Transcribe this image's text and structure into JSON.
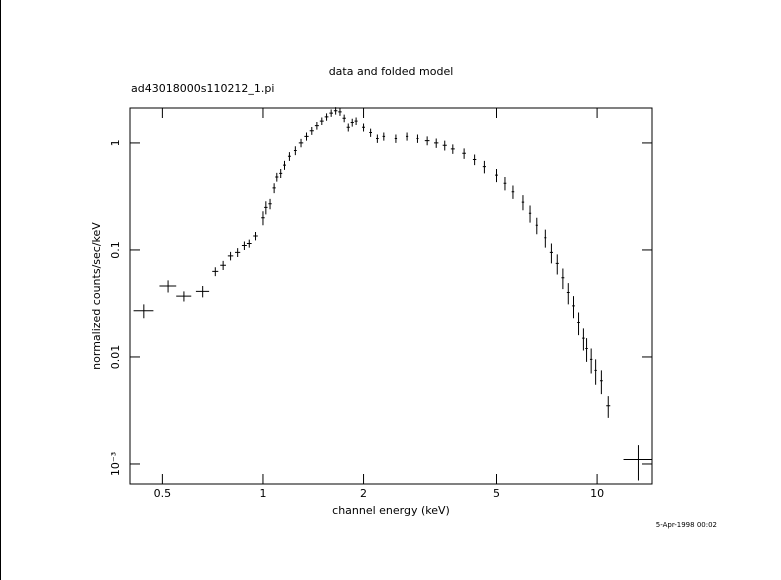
{
  "chart_data": {
    "type": "errorbar-scatter",
    "title": "data and folded model",
    "subtitle": "ad43018000s110212_1.pi",
    "x_label": "channel energy (keV)",
    "y_label": "normalized counts/sec/keV",
    "timestamp": "5-Apr-1998 00:02",
    "log_x": true,
    "log_y": true,
    "xlim": [
      0.4,
      14.6
    ],
    "ylim": [
      0.00065,
      2.12
    ],
    "xticks": [
      0.5,
      1,
      2,
      5,
      10
    ],
    "yticks": [
      {
        "value": 0.001,
        "label": "10⁻³"
      },
      0.01,
      0.1,
      1
    ],
    "color": "#000000",
    "x": [
      0.44,
      0.52,
      0.58,
      0.66,
      0.72,
      0.76,
      0.8,
      0.84,
      0.88,
      0.91,
      0.95,
      1.0,
      1.02,
      1.05,
      1.08,
      1.1,
      1.13,
      1.16,
      1.2,
      1.25,
      1.3,
      1.35,
      1.4,
      1.45,
      1.5,
      1.55,
      1.6,
      1.65,
      1.7,
      1.75,
      1.8,
      1.85,
      1.9,
      2.0,
      2.1,
      2.2,
      2.3,
      2.5,
      2.7,
      2.9,
      3.1,
      3.3,
      3.5,
      3.7,
      4.0,
      4.3,
      4.6,
      5.0,
      5.3,
      5.6,
      6.0,
      6.3,
      6.6,
      7.0,
      7.3,
      7.6,
      7.9,
      8.2,
      8.5,
      8.8,
      9.1,
      9.3,
      9.6,
      9.9,
      10.3,
      10.8,
      13.3
    ],
    "values": [
      0.027,
      0.046,
      0.037,
      0.041,
      0.063,
      0.072,
      0.088,
      0.095,
      0.11,
      0.115,
      0.135,
      0.2,
      0.25,
      0.27,
      0.38,
      0.48,
      0.52,
      0.62,
      0.75,
      0.85,
      1.0,
      1.15,
      1.3,
      1.45,
      1.6,
      1.75,
      1.9,
      2.0,
      1.95,
      1.7,
      1.4,
      1.55,
      1.6,
      1.4,
      1.25,
      1.1,
      1.15,
      1.1,
      1.15,
      1.1,
      1.05,
      1.0,
      0.95,
      0.88,
      0.8,
      0.7,
      0.6,
      0.5,
      0.42,
      0.35,
      0.28,
      0.22,
      0.17,
      0.13,
      0.095,
      0.075,
      0.055,
      0.04,
      0.03,
      0.021,
      0.015,
      0.012,
      0.0095,
      0.0075,
      0.006,
      0.0035,
      0.0011
    ],
    "xerr": [
      0.03,
      0.03,
      0.03,
      0.03,
      0.015,
      0.015,
      0.015,
      0.015,
      0.015,
      0.015,
      0.015,
      0.012,
      0.012,
      0.012,
      0.012,
      0.012,
      0.012,
      0.012,
      0.012,
      0.012,
      0.02,
      0.02,
      0.02,
      0.02,
      0.02,
      0.02,
      0.02,
      0.02,
      0.02,
      0.02,
      0.02,
      0.02,
      0.02,
      0.02,
      0.02,
      0.02,
      0.02,
      0.02,
      0.02,
      0.02,
      0.05,
      0.05,
      0.05,
      0.05,
      0.05,
      0.05,
      0.05,
      0.05,
      0.05,
      0.05,
      0.05,
      0.05,
      0.05,
      0.05,
      0.08,
      0.08,
      0.08,
      0.08,
      0.08,
      0.08,
      0.08,
      0.08,
      0.08,
      0.08,
      0.1,
      0.15,
      1.3
    ],
    "yerr": [
      0.004,
      0.006,
      0.004,
      0.005,
      0.006,
      0.007,
      0.008,
      0.009,
      0.01,
      0.01,
      0.012,
      0.03,
      0.035,
      0.03,
      0.04,
      0.045,
      0.05,
      0.06,
      0.07,
      0.08,
      0.09,
      0.1,
      0.11,
      0.12,
      0.13,
      0.14,
      0.15,
      0.16,
      0.16,
      0.14,
      0.12,
      0.13,
      0.13,
      0.12,
      0.11,
      0.1,
      0.1,
      0.1,
      0.1,
      0.1,
      0.1,
      0.1,
      0.1,
      0.09,
      0.09,
      0.08,
      0.08,
      0.07,
      0.06,
      0.05,
      0.045,
      0.04,
      0.03,
      0.025,
      0.02,
      0.016,
      0.012,
      0.009,
      0.007,
      0.005,
      0.0035,
      0.003,
      0.0025,
      0.002,
      0.0015,
      0.0008,
      0.0004
    ]
  }
}
